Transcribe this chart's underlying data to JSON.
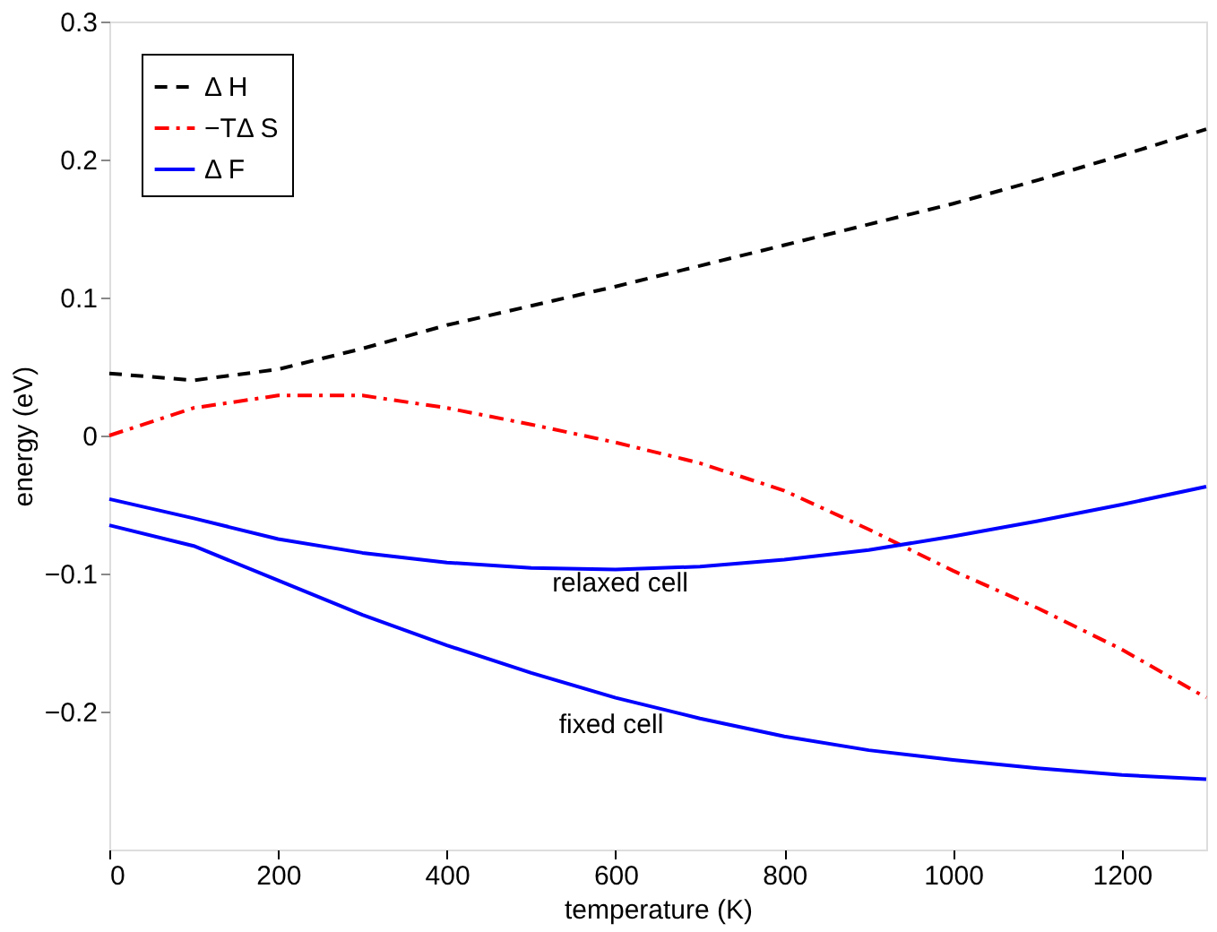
{
  "chart_data": {
    "type": "line",
    "xlabel": "temperature (K)",
    "ylabel": "energy (eV)",
    "xlim": [
      0,
      1300
    ],
    "xticks": [
      0,
      200,
      400,
      600,
      800,
      1000,
      1200
    ],
    "ylim": [
      -0.3,
      0.3
    ],
    "yticks": [
      -0.2,
      -0.1,
      0,
      0.1,
      0.2,
      0.3
    ],
    "grid": false,
    "legend": "top left",
    "marker": "none",
    "x": [
      0,
      100,
      200,
      300,
      400,
      500,
      600,
      700,
      800,
      900,
      1000,
      1100,
      1200,
      1300
    ],
    "series": [
      {
        "name": "Δ H",
        "color": "#000000",
        "line_style": "dashed",
        "values": [
          0.045,
          0.04,
          0.048,
          0.063,
          0.08,
          0.094,
          0.108,
          0.123,
          0.138,
          0.153,
          0.168,
          0.185,
          0.203,
          0.222
        ]
      },
      {
        "name": "−TΔ S",
        "color": "#ff0000",
        "line_style": "dashdot",
        "values": [
          0,
          0.02,
          0.029,
          0.029,
          0.02,
          0.008,
          -0.005,
          -0.02,
          -0.04,
          -0.068,
          -0.098,
          -0.125,
          -0.155,
          -0.19
        ]
      },
      {
        "name": "Δ F",
        "color": "#0000ff",
        "line_style": "solid",
        "values": [
          -0.046,
          -0.06,
          -0.075,
          -0.085,
          -0.092,
          -0.096,
          -0.097,
          -0.095,
          -0.09,
          -0.083,
          -0.073,
          -0.062,
          -0.05,
          -0.037
        ]
      },
      {
        "color": "#0000ff",
        "line_style": "solid",
        "values": [
          -0.065,
          -0.08,
          -0.105,
          -0.13,
          -0.152,
          -0.172,
          -0.19,
          -0.205,
          -0.218,
          -0.228,
          -0.235,
          -0.241,
          -0.246,
          -0.249
        ]
      }
    ],
    "annotations": [
      "relaxed cell",
      "fixed cell"
    ]
  }
}
